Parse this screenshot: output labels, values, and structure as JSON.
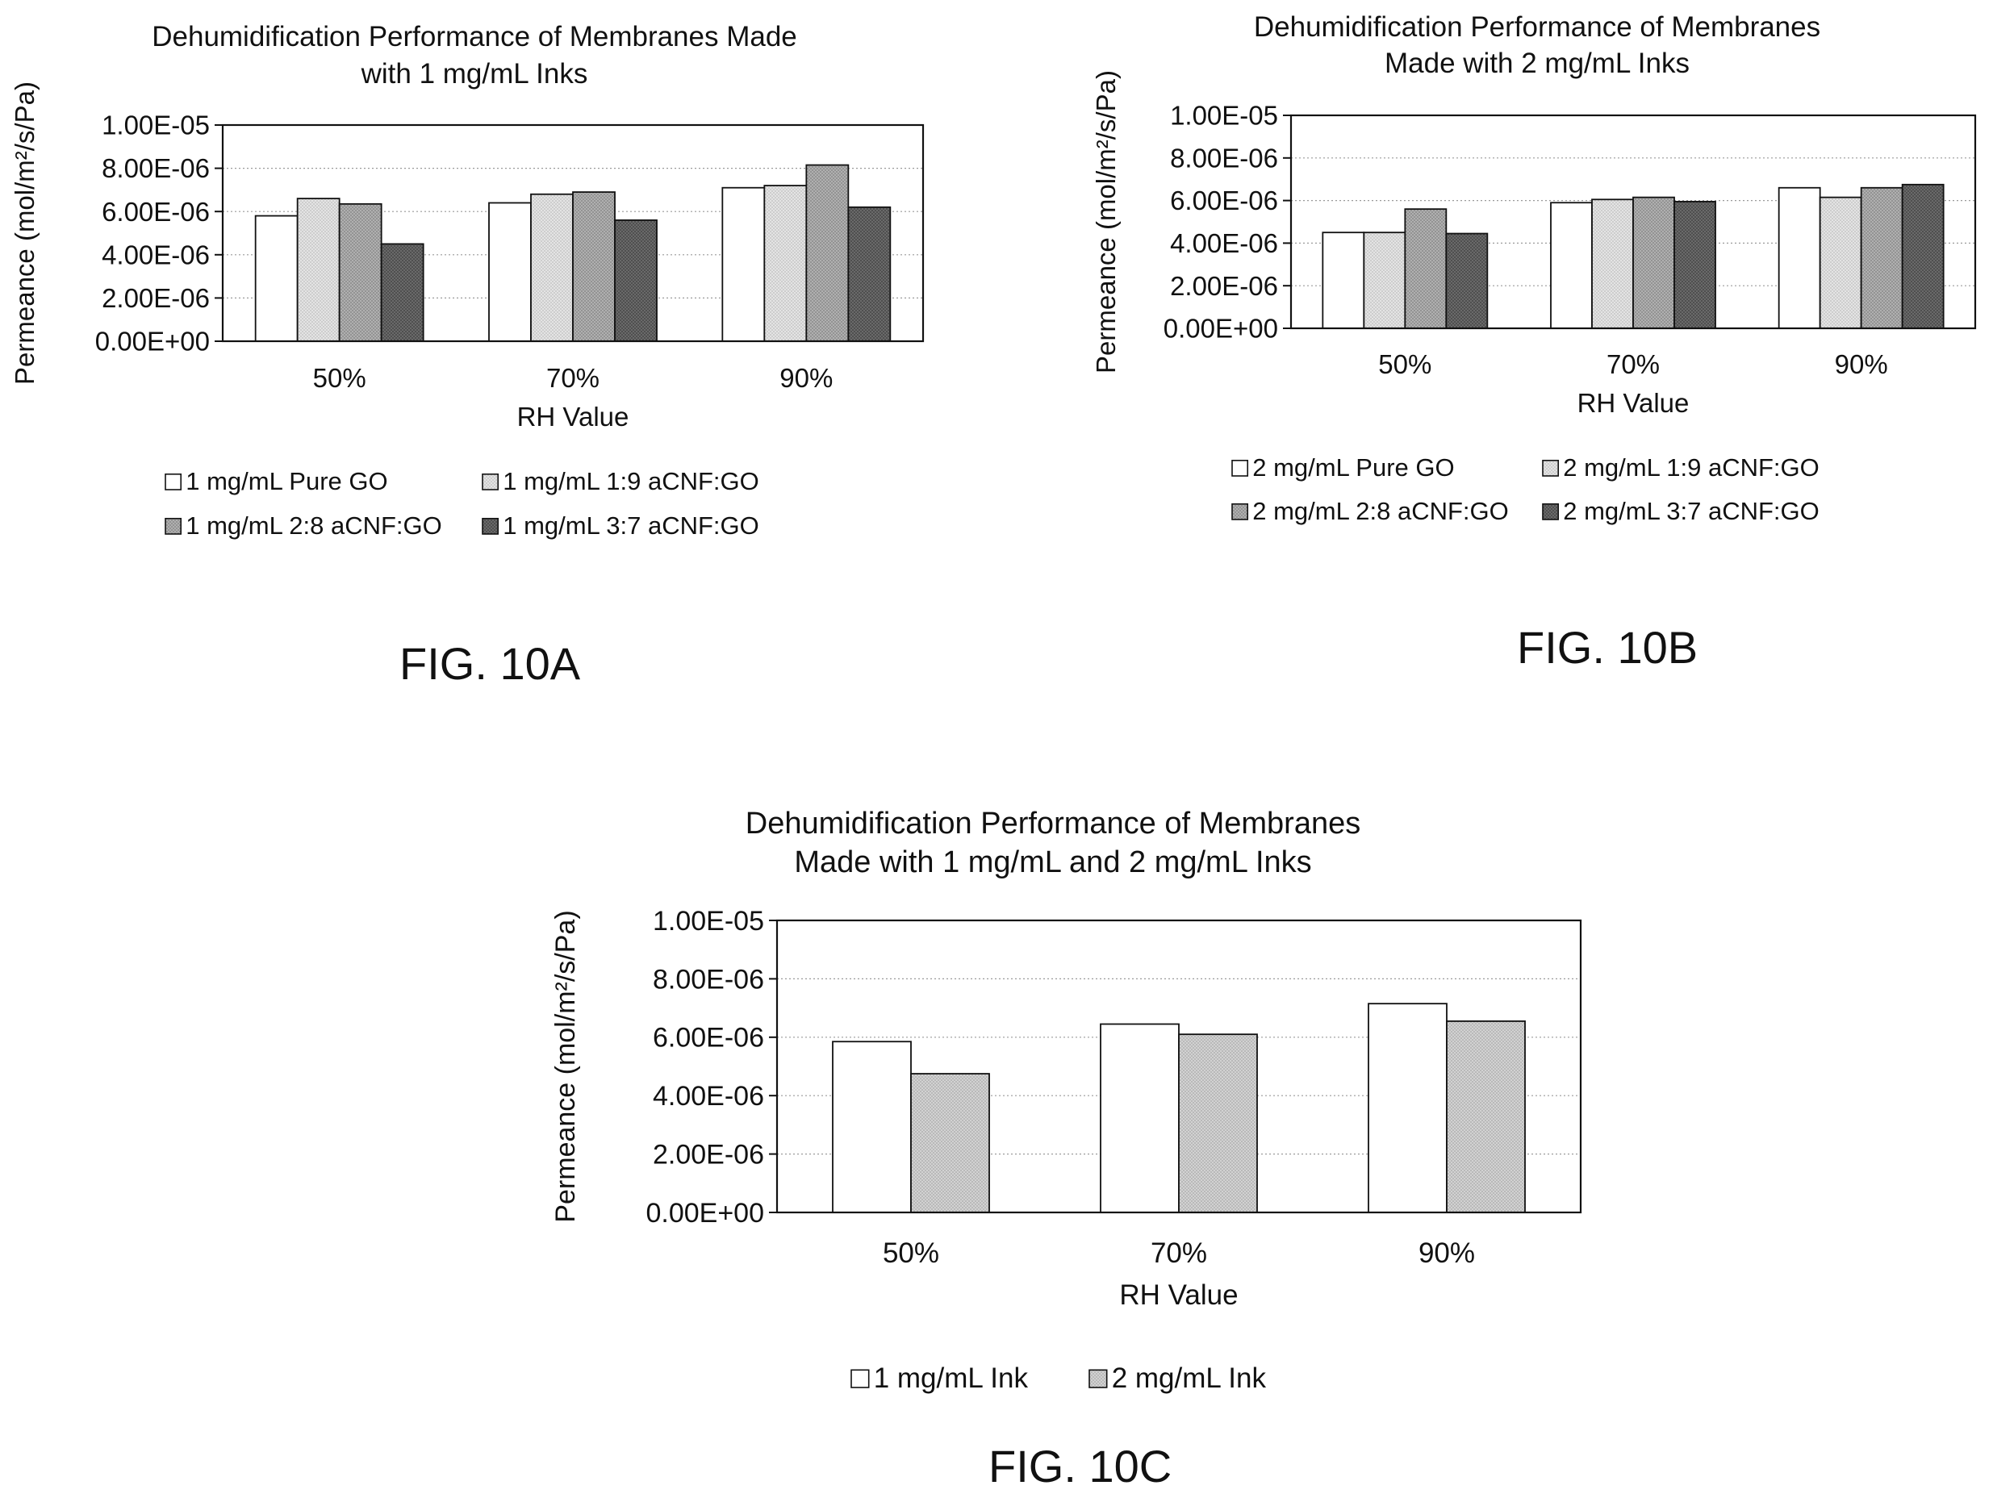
{
  "chart_data": [
    {
      "type": "bar",
      "title": [
        "Dehumidification Performance of Membranes Made",
        "with 1 mg/mL Inks"
      ],
      "xlabel": "RH Value",
      "ylabel": "Permeance (mol/m²/s/Pa)",
      "ylim": [
        0,
        1e-05
      ],
      "yticks": [
        "0.00E+00",
        "2.00E-06",
        "4.00E-06",
        "6.00E-06",
        "8.00E-06",
        "1.00E-05"
      ],
      "categories": [
        "50%",
        "70%",
        "90%"
      ],
      "grid": true,
      "legend_position": "bottom",
      "series": [
        {
          "name": "1 mg/mL Pure GO",
          "values": [
            5.8e-06,
            6.4e-06,
            7.1e-06
          ],
          "color": "#ffffff"
        },
        {
          "name": "1 mg/mL 1:9 aCNF:GO",
          "values": [
            6.6e-06,
            6.8e-06,
            7.2e-06
          ],
          "color": "#d9d9d9"
        },
        {
          "name": "1 mg/mL 2:8 aCNF:GO",
          "values": [
            6.35e-06,
            6.9e-06,
            8.15e-06
          ],
          "color": "#a3a3a3"
        },
        {
          "name": "1 mg/mL 3:7 aCNF:GO",
          "values": [
            4.5e-06,
            5.6e-06,
            6.2e-06
          ],
          "color": "#636363"
        }
      ],
      "figure_label": "FIG. 10A"
    },
    {
      "type": "bar",
      "title": [
        "Dehumidification Performance of Membranes",
        "Made with 2 mg/mL Inks"
      ],
      "xlabel": "RH Value",
      "ylabel": "Permeance (mol/m²/s/Pa)",
      "ylim": [
        0,
        1e-05
      ],
      "yticks": [
        "0.00E+00",
        "2.00E-06",
        "4.00E-06",
        "6.00E-06",
        "8.00E-06",
        "1.00E-05"
      ],
      "categories": [
        "50%",
        "70%",
        "90%"
      ],
      "grid": true,
      "legend_position": "bottom",
      "series": [
        {
          "name": "2 mg/mL Pure GO",
          "values": [
            4.5e-06,
            5.9e-06,
            6.6e-06
          ],
          "color": "#ffffff"
        },
        {
          "name": "2 mg/mL 1:9 aCNF:GO",
          "values": [
            4.5e-06,
            6.05e-06,
            6.15e-06
          ],
          "color": "#d9d9d9"
        },
        {
          "name": "2 mg/mL 2:8 aCNF:GO",
          "values": [
            5.6e-06,
            6.15e-06,
            6.6e-06
          ],
          "color": "#a3a3a3"
        },
        {
          "name": "2 mg/mL 3:7 aCNF:GO",
          "values": [
            4.45e-06,
            5.95e-06,
            6.75e-06
          ],
          "color": "#636363"
        }
      ],
      "figure_label": "FIG. 10B"
    },
    {
      "type": "bar",
      "title": [
        "Dehumidification Performance of Membranes",
        "Made with 1 mg/mL and 2 mg/mL Inks"
      ],
      "xlabel": "RH Value",
      "ylabel": "Permeance (mol/m²/s/Pa)",
      "ylim": [
        0,
        1e-05
      ],
      "yticks": [
        "0.00E+00",
        "2.00E-06",
        "4.00E-06",
        "6.00E-06",
        "8.00E-06",
        "1.00E-05"
      ],
      "categories": [
        "50%",
        "70%",
        "90%"
      ],
      "grid": true,
      "legend_position": "bottom",
      "series": [
        {
          "name": "1 mg/mL Ink",
          "values": [
            5.85e-06,
            6.45e-06,
            7.15e-06
          ],
          "color": "#ffffff"
        },
        {
          "name": "2 mg/mL Ink",
          "values": [
            4.75e-06,
            6.1e-06,
            6.55e-06
          ],
          "color": "#c8c8c8"
        }
      ],
      "figure_label": "FIG. 10C"
    }
  ]
}
